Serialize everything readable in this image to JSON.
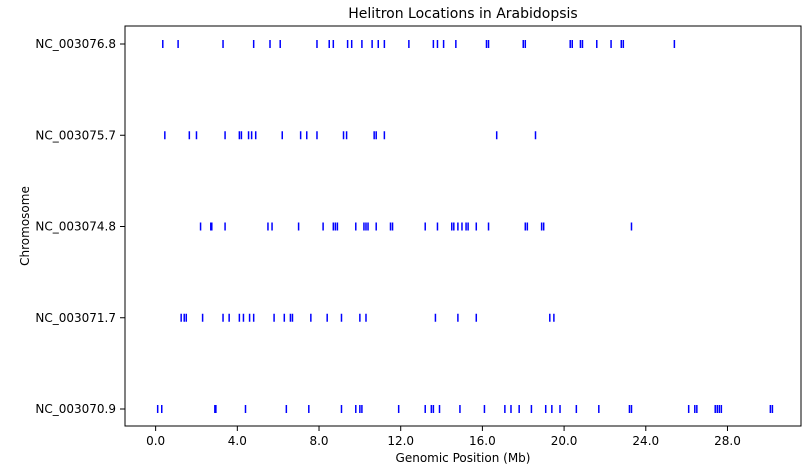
{
  "chart_data": {
    "type": "scatter",
    "title": "Helitron Locations in Arabidopsis",
    "xlabel": "Genomic Position (Mb)",
    "ylabel": "Chromosome",
    "xlim": [
      -1.5,
      31.6
    ],
    "x_ticks": [
      "0.0",
      "4.0",
      "8.0",
      "12.0",
      "16.0",
      "20.0",
      "24.0",
      "28.0"
    ],
    "x_tick_values": [
      0,
      4,
      8,
      12,
      16,
      20,
      24,
      28
    ],
    "categories": [
      "NC_003070.9",
      "NC_003071.7",
      "NC_003074.8",
      "NC_003075.7",
      "NC_003076.8"
    ],
    "grid": false,
    "marker_color": "#0000ff",
    "marker": "vertical-line",
    "series": [
      {
        "category": "NC_003076.8",
        "values": [
          0.35,
          1.1,
          3.3,
          4.8,
          5.6,
          6.1,
          7.9,
          8.5,
          8.7,
          9.4,
          9.6,
          10.1,
          10.6,
          10.9,
          11.2,
          12.4,
          13.6,
          13.8,
          14.1,
          14.7,
          16.2,
          16.3,
          18.0,
          18.1,
          20.3,
          20.4,
          20.8,
          20.9,
          21.6,
          22.3,
          22.8,
          22.9,
          25.4
        ]
      },
      {
        "category": "NC_003075.7",
        "values": [
          0.45,
          1.65,
          2.0,
          3.4,
          4.1,
          4.2,
          4.55,
          4.7,
          4.9,
          6.2,
          7.1,
          7.4,
          7.9,
          9.2,
          9.35,
          10.7,
          10.8,
          11.2,
          16.7,
          18.6
        ]
      },
      {
        "category": "NC_003074.8",
        "values": [
          2.2,
          2.7,
          2.75,
          3.4,
          5.5,
          5.7,
          7.0,
          8.2,
          8.7,
          8.8,
          8.9,
          9.8,
          10.2,
          10.3,
          10.4,
          10.8,
          11.5,
          11.6,
          13.2,
          13.8,
          14.5,
          14.6,
          14.8,
          15.0,
          15.2,
          15.3,
          15.7,
          16.3,
          18.1,
          18.2,
          18.9,
          19.0,
          23.3
        ]
      },
      {
        "category": "NC_003071.7",
        "values": [
          1.25,
          1.4,
          1.5,
          2.3,
          3.3,
          3.6,
          4.1,
          4.3,
          4.6,
          4.8,
          5.8,
          6.3,
          6.6,
          6.7,
          7.6,
          8.4,
          9.1,
          10.0,
          10.3,
          13.7,
          14.8,
          15.7,
          19.3,
          19.5
        ]
      },
      {
        "category": "NC_003070.9",
        "values": [
          0.1,
          0.3,
          2.9,
          2.95,
          4.4,
          6.4,
          7.5,
          9.1,
          9.8,
          10.0,
          10.1,
          11.9,
          13.2,
          13.5,
          13.6,
          13.9,
          14.9,
          16.1,
          17.1,
          17.4,
          17.8,
          18.4,
          19.1,
          19.4,
          19.8,
          20.6,
          21.7,
          23.2,
          23.3,
          26.1,
          26.4,
          26.5,
          27.4,
          27.5,
          27.6,
          27.7,
          30.1,
          30.2
        ]
      }
    ]
  }
}
